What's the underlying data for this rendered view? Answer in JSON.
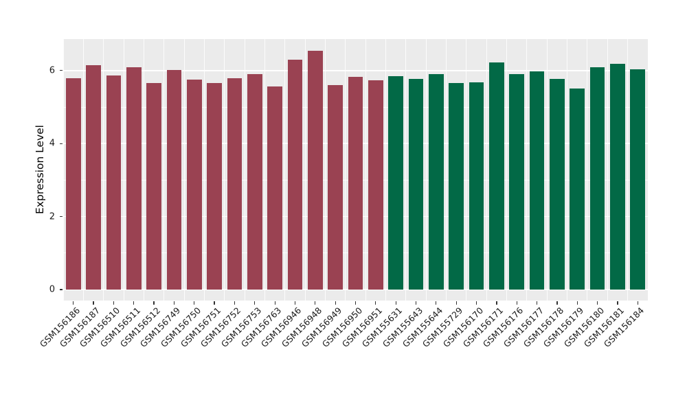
{
  "chart_data": {
    "type": "bar",
    "title": "",
    "xlabel": "",
    "ylabel": "Expression Level",
    "ylim": [
      0,
      6.87
    ],
    "yticks": [
      0,
      2,
      4,
      6
    ],
    "grid": "white major gridlines at 0,2,4,6 and minor at 1,3,5 on gray panel; vertical minor lines between categories",
    "legend": "none",
    "categories": [
      "GSM156186",
      "GSM156187",
      "GSM156510",
      "GSM156511",
      "GSM156512",
      "GSM156749",
      "GSM156750",
      "GSM156751",
      "GSM156752",
      "GSM156753",
      "GSM156763",
      "GSM156946",
      "GSM156948",
      "GSM156949",
      "GSM156950",
      "GSM156951",
      "GSM155631",
      "GSM155643",
      "GSM155644",
      "GSM155729",
      "GSM156170",
      "GSM156171",
      "GSM156176",
      "GSM156177",
      "GSM156178",
      "GSM156179",
      "GSM156180",
      "GSM156181",
      "GSM156184"
    ],
    "values": [
      5.79,
      6.15,
      5.86,
      6.09,
      5.65,
      6.01,
      5.76,
      5.66,
      5.79,
      5.9,
      5.57,
      6.29,
      6.55,
      5.61,
      5.83,
      5.73,
      5.85,
      5.78,
      5.9,
      5.66,
      5.68,
      6.23,
      5.9,
      5.98,
      5.78,
      5.51,
      6.09,
      6.19,
      6.04
    ],
    "group_split_index": 16,
    "colors": {
      "group1": "#9A4252",
      "group2": "#026946",
      "panel_background": "#EBEBEB",
      "figure_background": "#FFFFFF",
      "gridline": "#FFFFFF",
      "tick_mark": "#333333",
      "text": "#1A1A1A"
    }
  }
}
